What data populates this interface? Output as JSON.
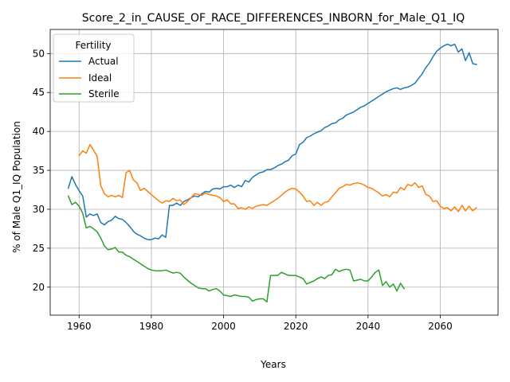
{
  "chart_data": {
    "type": "line",
    "title": "Score_2_in_CAUSE_OF_RACE_DIFFERENCES_INBORN_for_Male_Q1_IQ",
    "xlabel": "Years",
    "ylabel": "% of Male Q1_IQ Population",
    "xlim": [
      1952,
      2076
    ],
    "ylim": [
      16.4,
      53.1
    ],
    "xticks": [
      1960,
      1980,
      2000,
      2020,
      2040,
      2060
    ],
    "yticks": [
      20,
      25,
      30,
      35,
      40,
      45,
      50
    ],
    "grid": true,
    "legend": {
      "title": "Fertility",
      "placement": "top-left"
    },
    "series": [
      {
        "name": "Actual",
        "color": "#1f77b4",
        "x": [
          1957,
          1958,
          1959,
          1960,
          1961,
          1962,
          1963,
          1964,
          1965,
          1966,
          1967,
          1968,
          1969,
          1970,
          1971,
          1972,
          1973,
          1974,
          1975,
          1976,
          1977,
          1978,
          1979,
          1980,
          1981,
          1982,
          1983,
          1984,
          1985,
          1986,
          1987,
          1988,
          1989,
          1990,
          1991,
          1992,
          1993,
          1994,
          1995,
          1996,
          1997,
          1998,
          1999,
          2000,
          2001,
          2002,
          2003,
          2004,
          2005,
          2006,
          2007,
          2008,
          2009,
          2010,
          2011,
          2012,
          2013,
          2014,
          2015,
          2016,
          2017,
          2018,
          2019,
          2020,
          2021,
          2022,
          2023,
          2024,
          2025,
          2026,
          2027,
          2028,
          2029,
          2030,
          2031,
          2032,
          2033,
          2034,
          2035,
          2036,
          2037,
          2038,
          2039,
          2040,
          2041,
          2042,
          2043,
          2044,
          2045,
          2046,
          2047,
          2048,
          2049,
          2050,
          2051,
          2052,
          2053,
          2054,
          2055,
          2056,
          2057,
          2058,
          2059,
          2060,
          2061,
          2062,
          2063,
          2064,
          2065,
          2066,
          2067,
          2068,
          2069,
          2070
        ],
        "y": [
          32.7,
          34.2,
          33.2,
          32.4,
          31.7,
          29.0,
          29.4,
          29.2,
          29.4,
          28.3,
          28.0,
          28.4,
          28.6,
          29.1,
          28.8,
          28.7,
          28.3,
          27.8,
          27.2,
          26.8,
          26.6,
          26.3,
          26.1,
          26.1,
          26.3,
          26.2,
          26.7,
          26.4,
          30.5,
          30.5,
          30.8,
          30.5,
          31.0,
          31.2,
          31.5,
          31.7,
          31.6,
          32.0,
          32.3,
          32.2,
          32.6,
          32.7,
          32.6,
          32.9,
          32.9,
          33.1,
          32.8,
          33.1,
          32.9,
          33.7,
          33.5,
          34.1,
          34.4,
          34.7,
          34.8,
          35.1,
          35.1,
          35.3,
          35.6,
          35.8,
          36.1,
          36.3,
          36.9,
          37.1,
          38.3,
          38.6,
          39.2,
          39.4,
          39.7,
          39.9,
          40.1,
          40.5,
          40.7,
          41.0,
          41.1,
          41.5,
          41.7,
          42.1,
          42.3,
          42.5,
          42.8,
          43.1,
          43.3,
          43.6,
          43.9,
          44.2,
          44.5,
          44.8,
          45.1,
          45.3,
          45.5,
          45.6,
          45.4,
          45.6,
          45.7,
          45.9,
          46.2,
          46.8,
          47.4,
          48.2,
          48.8,
          49.6,
          50.3,
          50.7,
          51.0,
          51.2,
          51.0,
          51.2,
          50.2,
          50.6,
          49.1,
          50.1,
          48.7,
          48.6
        ]
      },
      {
        "name": "Ideal",
        "color": "#ff7f0e",
        "x": [
          1960,
          1961,
          1962,
          1963,
          1964,
          1965,
          1966,
          1967,
          1968,
          1969,
          1970,
          1971,
          1972,
          1973,
          1974,
          1975,
          1976,
          1977,
          1978,
          1979,
          1980,
          1981,
          1982,
          1983,
          1984,
          1985,
          1986,
          1987,
          1988,
          1989,
          1990,
          1991,
          1992,
          1993,
          1994,
          1995,
          1996,
          1997,
          1998,
          1999,
          2000,
          2001,
          2002,
          2003,
          2004,
          2005,
          2006,
          2007,
          2008,
          2009,
          2010,
          2011,
          2012,
          2013,
          2014,
          2015,
          2016,
          2017,
          2018,
          2019,
          2020,
          2021,
          2022,
          2023,
          2024,
          2025,
          2026,
          2027,
          2028,
          2029,
          2030,
          2031,
          2032,
          2033,
          2034,
          2035,
          2036,
          2037,
          2038,
          2039,
          2040,
          2041,
          2042,
          2043,
          2044,
          2045,
          2046,
          2047,
          2048,
          2049,
          2050,
          2051,
          2052,
          2053,
          2054,
          2055,
          2056,
          2057,
          2058,
          2059,
          2060,
          2061,
          2062,
          2063,
          2064,
          2065,
          2066,
          2067,
          2068,
          2069,
          2070
        ],
        "y": [
          36.9,
          37.5,
          37.2,
          38.3,
          37.6,
          36.8,
          33.0,
          32.0,
          31.6,
          31.8,
          31.6,
          31.8,
          31.5,
          34.7,
          35.0,
          33.8,
          33.4,
          32.4,
          32.7,
          32.3,
          31.9,
          31.5,
          31.1,
          30.8,
          31.1,
          31.0,
          31.4,
          31.1,
          31.2,
          30.6,
          31.0,
          31.5,
          32.0,
          31.9,
          31.8,
          32.1,
          31.9,
          31.8,
          31.7,
          31.5,
          31.0,
          31.2,
          30.7,
          30.7,
          30.1,
          30.2,
          30.0,
          30.3,
          30.1,
          30.4,
          30.5,
          30.6,
          30.5,
          30.8,
          31.1,
          31.4,
          31.8,
          32.2,
          32.5,
          32.7,
          32.6,
          32.2,
          31.7,
          31.0,
          31.1,
          30.5,
          30.9,
          30.5,
          30.9,
          31.0,
          31.6,
          32.1,
          32.7,
          32.9,
          33.2,
          33.1,
          33.3,
          33.4,
          33.3,
          33.1,
          32.8,
          32.7,
          32.4,
          32.1,
          31.7,
          31.9,
          31.6,
          32.2,
          32.1,
          32.8,
          32.5,
          33.2,
          33.0,
          33.4,
          32.8,
          33.0,
          31.9,
          31.7,
          31.0,
          31.1,
          30.4,
          30.1,
          30.2,
          29.8,
          30.3,
          29.7,
          30.5,
          29.8,
          30.4,
          29.8,
          30.2
        ]
      },
      {
        "name": "Sterile",
        "color": "#2ca02c",
        "x": [
          1957,
          1958,
          1959,
          1960,
          1961,
          1962,
          1963,
          1964,
          1965,
          1966,
          1967,
          1968,
          1969,
          1970,
          1971,
          1972,
          1973,
          1974,
          1975,
          1976,
          1977,
          1978,
          1979,
          1980,
          1981,
          1982,
          1983,
          1984,
          1985,
          1986,
          1987,
          1988,
          1989,
          1990,
          1991,
          1992,
          1993,
          1994,
          1995,
          1996,
          1997,
          1998,
          1999,
          2000,
          2001,
          2002,
          2003,
          2004,
          2005,
          2006,
          2007,
          2008,
          2009,
          2010,
          2011,
          2012,
          2013,
          2014,
          2015,
          2016,
          2017,
          2018,
          2019,
          2020,
          2021,
          2022,
          2023,
          2024,
          2025,
          2026,
          2027,
          2028,
          2029,
          2030,
          2031,
          2032,
          2033,
          2034,
          2035,
          2036,
          2037,
          2038,
          2039,
          2040,
          2041,
          2042,
          2043,
          2044,
          2045,
          2046,
          2047,
          2048,
          2049,
          2050
        ],
        "y": [
          31.7,
          30.6,
          30.9,
          30.4,
          29.5,
          27.6,
          27.8,
          27.5,
          27.1,
          26.3,
          25.3,
          24.8,
          24.9,
          25.1,
          24.5,
          24.5,
          24.1,
          23.9,
          23.6,
          23.3,
          23.0,
          22.7,
          22.4,
          22.2,
          22.1,
          22.1,
          22.1,
          22.2,
          22.0,
          21.8,
          21.9,
          21.8,
          21.3,
          20.9,
          20.5,
          20.2,
          19.9,
          19.8,
          19.8,
          19.5,
          19.7,
          19.8,
          19.5,
          19.0,
          18.9,
          18.8,
          19.0,
          18.9,
          18.8,
          18.8,
          18.7,
          18.2,
          18.4,
          18.5,
          18.5,
          18.1,
          21.5,
          21.5,
          21.5,
          21.9,
          21.7,
          21.5,
          21.5,
          21.5,
          21.3,
          21.1,
          20.4,
          20.6,
          20.8,
          21.1,
          21.3,
          21.1,
          21.5,
          21.6,
          22.3,
          22.0,
          22.2,
          22.3,
          22.2,
          20.8,
          20.9,
          21.0,
          20.8,
          20.8,
          21.3,
          21.9,
          22.2,
          20.2,
          20.7,
          20.0,
          20.4,
          19.5,
          20.5,
          19.8
        ]
      }
    ]
  }
}
